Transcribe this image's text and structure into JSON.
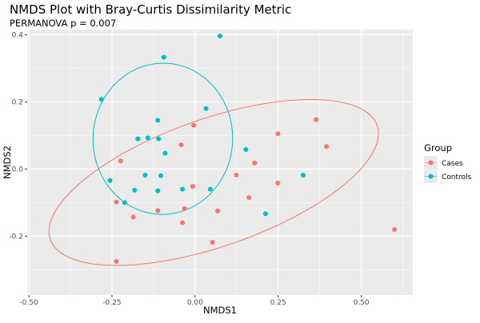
{
  "chart_data": {
    "type": "scatter",
    "title": "NMDS Plot with Bray-Curtis Dissimilarity Metric",
    "subtitle": "PERMANOVA p = 0.007",
    "xlabel": "NMDS1",
    "ylabel": "NMDS2",
    "xlim": [
      -0.505,
      0.655
    ],
    "ylim": [
      -0.375,
      0.415
    ],
    "x_ticks": [
      -0.5,
      -0.25,
      0.0,
      0.25,
      0.5
    ],
    "x_tick_labels": [
      "-0.50",
      "-0.25",
      "0.00",
      "0.25",
      "0.50"
    ],
    "y_ticks": [
      -0.2,
      0.0,
      0.2,
      0.4
    ],
    "y_tick_labels": [
      "-0.2",
      "0.0",
      "0.2",
      "0.4"
    ],
    "grid": true,
    "legend": {
      "title": "Group",
      "position": "right"
    },
    "series": [
      {
        "name": "Cases",
        "color": "#F8766D",
        "points": [
          [
            -0.004,
            0.13
          ],
          [
            -0.042,
            0.072
          ],
          [
            0.249,
            0.105
          ],
          [
            0.364,
            0.147
          ],
          [
            0.395,
            0.067
          ],
          [
            -0.224,
            0.024
          ],
          [
            0.179,
            0.018
          ],
          [
            0.124,
            -0.018
          ],
          [
            -0.007,
            -0.052
          ],
          [
            0.249,
            -0.042
          ],
          [
            0.162,
            -0.085
          ],
          [
            -0.237,
            -0.098
          ],
          [
            -0.032,
            -0.118
          ],
          [
            -0.112,
            -0.124
          ],
          [
            -0.186,
            -0.143
          ],
          [
            0.068,
            -0.125
          ],
          [
            -0.038,
            -0.16
          ],
          [
            0.052,
            -0.218
          ],
          [
            0.6,
            -0.18
          ],
          [
            -0.237,
            -0.275
          ]
        ]
      },
      {
        "name": "Controls",
        "color": "#00BFC4",
        "points": [
          [
            0.075,
            0.396
          ],
          [
            -0.094,
            0.333
          ],
          [
            -0.282,
            0.207
          ],
          [
            0.033,
            0.18
          ],
          [
            -0.112,
            0.145
          ],
          [
            -0.142,
            0.093
          ],
          [
            -0.172,
            0.09
          ],
          [
            -0.11,
            0.09
          ],
          [
            -0.09,
            0.047
          ],
          [
            0.153,
            0.058
          ],
          [
            -0.15,
            -0.018
          ],
          [
            -0.103,
            -0.02
          ],
          [
            -0.256,
            -0.034
          ],
          [
            -0.038,
            -0.06
          ],
          [
            -0.182,
            -0.063
          ],
          [
            0.046,
            -0.06
          ],
          [
            -0.112,
            -0.065
          ],
          [
            -0.212,
            -0.1
          ],
          [
            0.325,
            -0.018
          ],
          [
            0.212,
            -0.133
          ]
        ]
      }
    ],
    "ellipses": [
      {
        "group": "Cases",
        "color": "#F8766D",
        "center": [
          0.056,
          -0.04
        ],
        "semi_axes": [
          0.52,
          0.19
        ],
        "rotation_deg": 19
      },
      {
        "group": "Controls",
        "color": "#00BFC4",
        "center": [
          -0.097,
          0.09
        ],
        "semi_axes": [
          0.21,
          0.225
        ],
        "rotation_deg": -3
      }
    ]
  }
}
